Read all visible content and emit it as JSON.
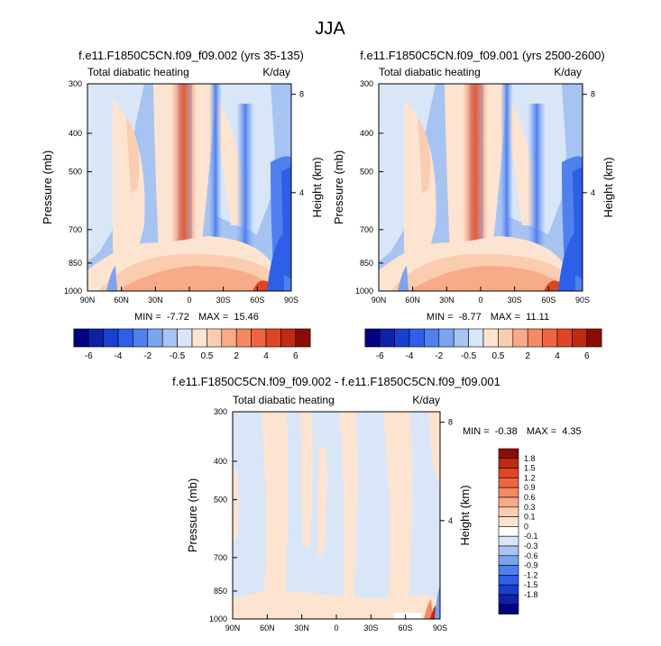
{
  "figure": {
    "title": "JJA",
    "colors": {
      "main_scale": [
        "#000080",
        "#0d22a8",
        "#1a3fd0",
        "#2f5ee8",
        "#4f80ee",
        "#7aa3f0",
        "#a7c3f2",
        "#d8e6f8",
        "#fde4d0",
        "#fbcdb0",
        "#f8ab88",
        "#f48962",
        "#f0653f",
        "#e04422",
        "#bf2a12",
        "#8a0c06"
      ],
      "diff_scale": [
        "#000080",
        "#0d22a8",
        "#1a3fd0",
        "#2f5ee8",
        "#4f80ee",
        "#7aa3f0",
        "#a7c3f2",
        "#d8e6f8",
        "#ffffff",
        "#fde4d0",
        "#fbcdb0",
        "#f8ab88",
        "#f48962",
        "#f0653f",
        "#e04422",
        "#bf2a12",
        "#8a0c06"
      ]
    }
  },
  "chart_data": [
    {
      "type": "contour",
      "panel": "top-left",
      "title": "f.e11.F1850C5CN.f09_f09.002 (yrs 35-135)",
      "left_label": "Total diabatic heating",
      "right_label": "K/day",
      "xlabel": "",
      "ylabel": "Pressure (mb)",
      "ylabel_right": "Height (km)",
      "x_ticks": [
        "90N",
        "60N",
        "30N",
        "0",
        "30S",
        "60S",
        "90S"
      ],
      "y_ticks": [
        "300",
        "400",
        "500",
        "700",
        "850",
        "1000"
      ],
      "y_tick_values": [
        300,
        400,
        500,
        700,
        850,
        1000
      ],
      "height_ticks": [
        "8",
        "4"
      ],
      "height_tick_values": [
        8,
        4
      ],
      "xlim": [
        90,
        -90
      ],
      "ylim": [
        1000,
        300
      ],
      "min_label": "MIN =",
      "min_value": "-7.72",
      "max_label": "MAX =",
      "max_value": "15.46",
      "colorbar_labels": [
        "-6",
        "-4",
        "-2",
        "-0.5",
        "0.5",
        "2",
        "4",
        "6"
      ]
    },
    {
      "type": "contour",
      "panel": "top-right",
      "title": "f.e11.F1850C5CN.f09_f09.001 (yrs 2500-2600)",
      "left_label": "Total diabatic heating",
      "right_label": "K/day",
      "xlabel": "",
      "ylabel": "Pressure (mb)",
      "ylabel_right": "Height (km)",
      "x_ticks": [
        "90N",
        "60N",
        "30N",
        "0",
        "30S",
        "60S",
        "90S"
      ],
      "y_ticks": [
        "300",
        "400",
        "500",
        "700",
        "850",
        "1000"
      ],
      "y_tick_values": [
        300,
        400,
        500,
        700,
        850,
        1000
      ],
      "height_ticks": [
        "8",
        "4"
      ],
      "height_tick_values": [
        8,
        4
      ],
      "xlim": [
        90,
        -90
      ],
      "ylim": [
        1000,
        300
      ],
      "min_label": "MIN =",
      "min_value": "-8.77",
      "max_label": "MAX =",
      "max_value": "11.11",
      "colorbar_labels": [
        "-6",
        "-4",
        "-2",
        "-0.5",
        "0.5",
        "2",
        "4",
        "6"
      ]
    },
    {
      "type": "contour",
      "panel": "bottom",
      "title": "f.e11.F1850C5CN.f09_f09.002 - f.e11.F1850C5CN.f09_f09.001",
      "left_label": "Total diabatic heating",
      "right_label": "K/day",
      "xlabel": "",
      "ylabel": "Pressure (mb)",
      "ylabel_right": "Height (km)",
      "x_ticks": [
        "90N",
        "60N",
        "30N",
        "0",
        "30S",
        "60S",
        "90S"
      ],
      "y_ticks": [
        "300",
        "400",
        "500",
        "700",
        "850",
        "1000"
      ],
      "y_tick_values": [
        300,
        400,
        500,
        700,
        850,
        1000
      ],
      "height_ticks": [
        "8",
        "4"
      ],
      "height_tick_values": [
        8,
        4
      ],
      "xlim": [
        90,
        -90
      ],
      "ylim": [
        1000,
        300
      ],
      "min_label": "MIN =",
      "min_value": "-0.38",
      "max_label": "MAX =",
      "max_value": "4.35",
      "colorbar_labels": [
        "1.8",
        "1.5",
        "1.2",
        "0.9",
        "0.6",
        "0.3",
        "0.1",
        "0",
        "-0.1",
        "-0.3",
        "-0.6",
        "-0.9",
        "-1.2",
        "-1.5",
        "-1.8"
      ]
    }
  ]
}
